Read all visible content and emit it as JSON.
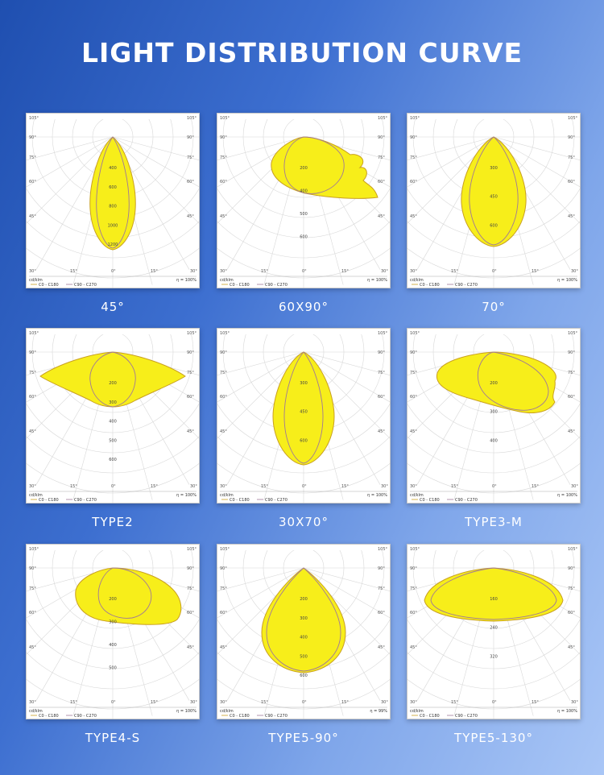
{
  "title": "LIGHT DISTRIBUTION CURVE",
  "colors": {
    "fill": "#f7ee1a",
    "curve_c0": "#c9a020",
    "curve_c90": "#a07898",
    "grid": "#d8d8d8"
  },
  "legend": {
    "unit": "cd/klm",
    "c0": "C0 - C180",
    "c90": "C90 - C270"
  },
  "charts": [
    {
      "caption": "45°",
      "eff": "η = 100%",
      "values": [
        "400",
        "600",
        "800",
        "1000",
        "1200"
      ],
      "shape": "narrow"
    },
    {
      "caption": "60X90°",
      "eff": "η = 100%",
      "values": [
        "200",
        "400",
        "500",
        "600"
      ],
      "shape": "asym"
    },
    {
      "caption": "70°",
      "eff": "η = 100%",
      "values": [
        "300",
        "450",
        "600"
      ],
      "shape": "oval"
    },
    {
      "caption": "TYPE2",
      "eff": "η = 100%",
      "values": [
        "200",
        "300",
        "400",
        "500",
        "600"
      ],
      "shape": "wide"
    },
    {
      "caption": "30X70°",
      "eff": "η = 100%",
      "values": [
        "300",
        "450",
        "600"
      ],
      "shape": "oval2"
    },
    {
      "caption": "TYPE3-M",
      "eff": "η = 100%",
      "values": [
        "200",
        "300",
        "400"
      ],
      "shape": "type3"
    },
    {
      "caption": "TYPE4-S",
      "eff": "η = 100%",
      "values": [
        "200",
        "300",
        "400",
        "500"
      ],
      "shape": "type4"
    },
    {
      "caption": "TYPE5-90°",
      "eff": "η = 99%",
      "values": [
        "200",
        "300",
        "400",
        "500",
        "600"
      ],
      "shape": "drop"
    },
    {
      "caption": "TYPE5-130°",
      "eff": "η = 100%",
      "values": [
        "160",
        "240",
        "320"
      ],
      "shape": "type5w"
    }
  ],
  "angles": {
    "top": "105°",
    "a90": "90°",
    "a75": "75°",
    "a60": "60°",
    "a45": "45°",
    "a30": "30°",
    "a15": "15°",
    "a0": "0°"
  }
}
